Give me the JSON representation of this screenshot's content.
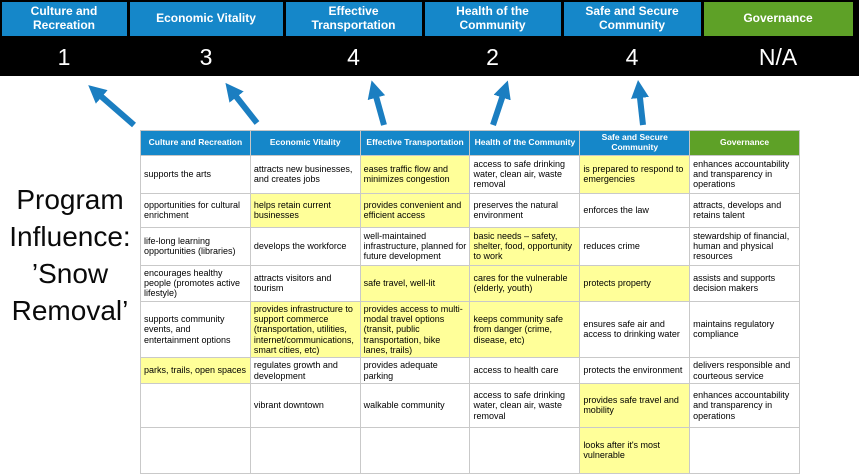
{
  "colors": {
    "header_blue": "#1587C9",
    "header_green": "#5EA127",
    "highlight_yellow": "#FFFF99",
    "arrow_blue": "#1B7EC1",
    "score_band_bg": "#000000"
  },
  "icons": {
    "influence_arrow": "diagonal-up-arrow"
  },
  "program_label": "Program Influence: ’Snow Removal’",
  "scorecard": {
    "categories": [
      {
        "label": "Culture and Recreation",
        "score": "1",
        "color": "blue"
      },
      {
        "label": "Economic Vitality",
        "score": "3",
        "color": "blue"
      },
      {
        "label": "Effective Transportation",
        "score": "4",
        "color": "blue"
      },
      {
        "label": "Health of the Community",
        "score": "2",
        "color": "blue"
      },
      {
        "label": "Safe and Secure Community",
        "score": "4",
        "color": "blue"
      },
      {
        "label": "Governance",
        "score": "N/A",
        "color": "green"
      }
    ]
  },
  "table": {
    "headers": [
      {
        "label": "Culture and Recreation",
        "color": "blue"
      },
      {
        "label": "Economic Vitality",
        "color": "blue"
      },
      {
        "label": "Effective Transportation",
        "color": "blue"
      },
      {
        "label": "Health of the Community",
        "color": "blue"
      },
      {
        "label": "Safe and Secure Community",
        "color": "blue"
      },
      {
        "label": "Governance",
        "color": "green"
      }
    ],
    "rows": [
      [
        {
          "text": "supports the arts",
          "highlight": false
        },
        {
          "text": "attracts new businesses, and creates jobs",
          "highlight": false
        },
        {
          "text": "eases traffic flow and minimizes congestion",
          "highlight": true
        },
        {
          "text": "access to safe drinking water, clean air, waste removal",
          "highlight": false
        },
        {
          "text": "is prepared to respond to emergencies",
          "highlight": true
        },
        {
          "text": "enhances accountability and transparency in operations",
          "highlight": false
        }
      ],
      [
        {
          "text": "opportunities for cultural enrichment",
          "highlight": false
        },
        {
          "text": "helps retain current businesses",
          "highlight": true
        },
        {
          "text": "provides convenient and efficient access",
          "highlight": true
        },
        {
          "text": "preserves the natural environment",
          "highlight": false
        },
        {
          "text": "enforces the law",
          "highlight": false
        },
        {
          "text": "attracts, develops and retains talent",
          "highlight": false
        }
      ],
      [
        {
          "text": "life-long learning opportunities (libraries)",
          "highlight": false
        },
        {
          "text": "develops the workforce",
          "highlight": false
        },
        {
          "text": "well-maintained infrastructure, planned for future development",
          "highlight": false
        },
        {
          "text": "basic needs – safety, shelter, food, opportunity to work",
          "highlight": true
        },
        {
          "text": "reduces crime",
          "highlight": false
        },
        {
          "text": "stewardship of financial, human and physical resources",
          "highlight": false
        }
      ],
      [
        {
          "text": "encourages healthy people (promotes active lifestyle)",
          "highlight": false
        },
        {
          "text": "attracts visitors and tourism",
          "highlight": false
        },
        {
          "text": "safe travel, well-lit",
          "highlight": true
        },
        {
          "text": "cares for the vulnerable (elderly, youth)",
          "highlight": true
        },
        {
          "text": "protects property",
          "highlight": true
        },
        {
          "text": "assists and supports decision makers",
          "highlight": false
        }
      ],
      [
        {
          "text": "supports community events, and entertainment options",
          "highlight": false
        },
        {
          "text": "provides infrastructure to support commerce (transportation, utilities, internet/communications, smart cities, etc)",
          "highlight": true
        },
        {
          "text": "provides access to multi-modal travel options (transit, public transportation, bike lanes, trails)",
          "highlight": true
        },
        {
          "text": "keeps community safe from danger (crime, disease, etc)",
          "highlight": true
        },
        {
          "text": "ensures safe air and access to drinking water",
          "highlight": false
        },
        {
          "text": "maintains regulatory compliance",
          "highlight": false
        }
      ],
      [
        {
          "text": "parks, trails, open spaces",
          "highlight": true
        },
        {
          "text": "regulates growth and development",
          "highlight": false
        },
        {
          "text": "provides adequate parking",
          "highlight": false
        },
        {
          "text": "access to health care",
          "highlight": false
        },
        {
          "text": "protects the environment",
          "highlight": false
        },
        {
          "text": "delivers responsible and courteous service",
          "highlight": false
        }
      ],
      [
        {
          "text": "",
          "highlight": false
        },
        {
          "text": "vibrant downtown",
          "highlight": false
        },
        {
          "text": "walkable community",
          "highlight": false
        },
        {
          "text": "access to safe drinking water, clean air, waste removal",
          "highlight": false
        },
        {
          "text": "provides safe travel and mobility",
          "highlight": true
        },
        {
          "text": "enhances accountability and transparency in operations",
          "highlight": false
        }
      ],
      [
        {
          "text": "",
          "highlight": false
        },
        {
          "text": "",
          "highlight": false
        },
        {
          "text": "",
          "highlight": false
        },
        {
          "text": "",
          "highlight": false
        },
        {
          "text": "looks after it's most vulnerable",
          "highlight": true
        },
        {
          "text": "",
          "highlight": false
        }
      ]
    ]
  }
}
